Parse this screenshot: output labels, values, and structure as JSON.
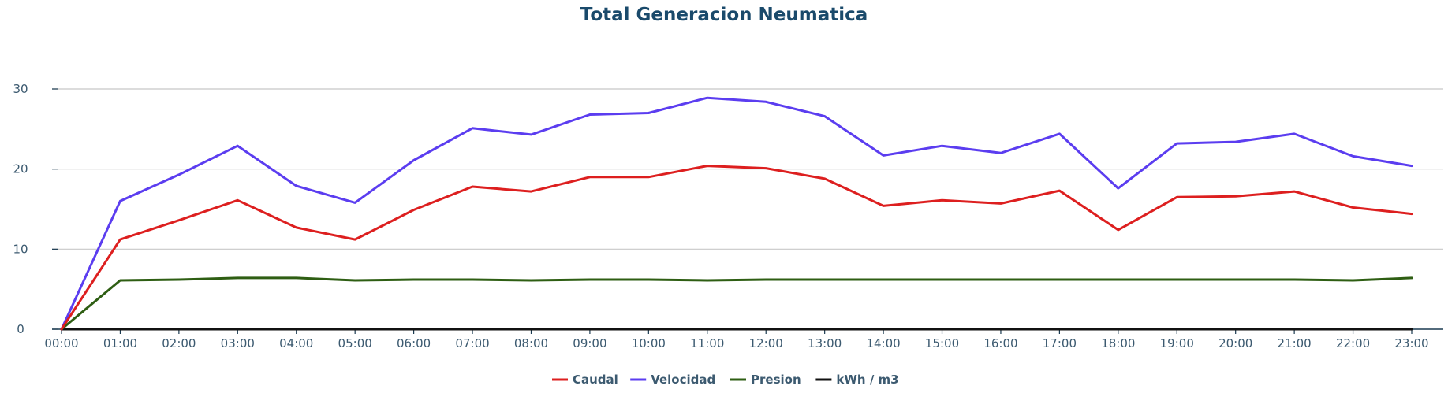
{
  "chart_data": {
    "type": "line",
    "title": "Total Generacion Neumatica",
    "xlabel": "",
    "ylabel": "",
    "categories": [
      "00:00",
      "01:00",
      "02:00",
      "03:00",
      "04:00",
      "05:00",
      "06:00",
      "07:00",
      "08:00",
      "09:00",
      "10:00",
      "11:00",
      "12:00",
      "13:00",
      "14:00",
      "15:00",
      "16:00",
      "17:00",
      "18:00",
      "19:00",
      "20:00",
      "21:00",
      "22:00",
      "23:00"
    ],
    "ylim": [
      0,
      30
    ],
    "yticks": [
      0,
      10,
      20,
      30
    ],
    "grid": true,
    "legend_position": "bottom-center",
    "series": [
      {
        "name": "Caudal",
        "color": "#dd1f1f",
        "values": [
          0,
          11.2,
          13.6,
          16.1,
          12.7,
          11.2,
          14.9,
          17.8,
          17.2,
          19.0,
          19.0,
          20.4,
          20.1,
          18.8,
          15.4,
          16.1,
          15.7,
          17.3,
          12.4,
          16.5,
          16.6,
          17.2,
          15.2,
          14.4
        ]
      },
      {
        "name": "Velocidad",
        "color": "#5b3df0",
        "values": [
          0,
          16.0,
          19.3,
          22.9,
          17.9,
          15.8,
          21.1,
          25.1,
          24.3,
          26.8,
          27.0,
          28.9,
          28.4,
          26.6,
          21.7,
          22.9,
          22.0,
          24.4,
          17.6,
          23.2,
          23.4,
          24.4,
          21.6,
          20.4
        ]
      },
      {
        "name": "Presion",
        "color": "#2e5e13",
        "values": [
          0,
          6.1,
          6.2,
          6.4,
          6.4,
          6.1,
          6.2,
          6.2,
          6.1,
          6.2,
          6.2,
          6.1,
          6.2,
          6.2,
          6.2,
          6.2,
          6.2,
          6.2,
          6.2,
          6.2,
          6.2,
          6.2,
          6.1,
          6.4
        ]
      },
      {
        "name": "kWh / m3",
        "color": "#111111",
        "values": [
          0,
          0,
          0,
          0,
          0,
          0,
          0,
          0,
          0,
          0,
          0,
          0,
          0,
          0,
          0,
          0,
          0,
          0,
          0,
          0,
          0,
          0,
          0,
          0
        ]
      }
    ]
  },
  "colors": {
    "title": "#1a4a6b",
    "axis_text": "#3c5a70",
    "grid": "#c8c8c8",
    "axis_line": "#1a3a50"
  }
}
